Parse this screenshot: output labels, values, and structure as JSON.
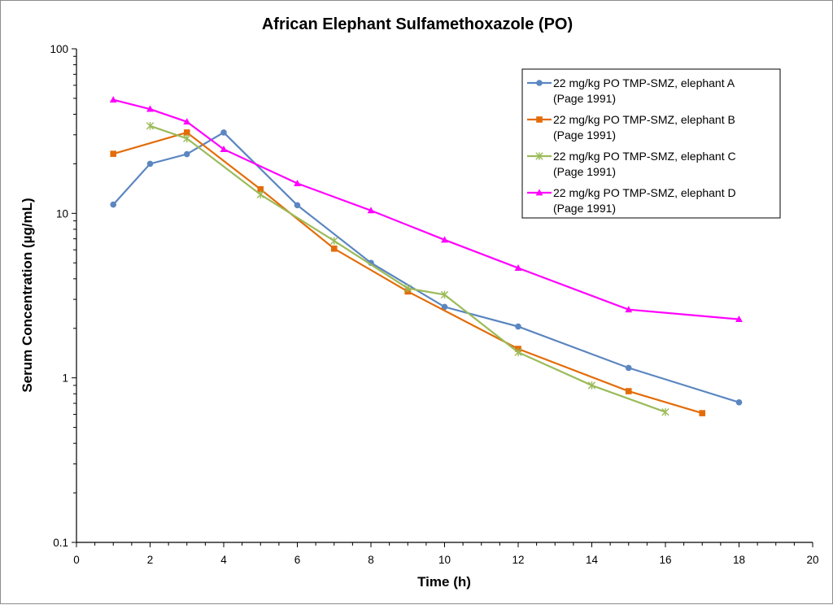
{
  "chart_data": {
    "type": "line",
    "title": "African Elephant Sulfamethoxazole (PO)",
    "xlabel": "Time (h)",
    "ylabel": "Serum Concentration (µg/mL)",
    "xlim": [
      0,
      20
    ],
    "ylim": [
      0.1,
      100
    ],
    "yscale": "log",
    "x_ticks": [
      "0",
      "2",
      "4",
      "6",
      "8",
      "10",
      "12",
      "14",
      "16",
      "18",
      "20"
    ],
    "y_ticks": [
      "0.1",
      "1",
      "10",
      "100"
    ],
    "grid": false,
    "legend_position": "top-right",
    "series": [
      {
        "name": "22 mg/kg PO TMP-SMZ, elephant A (Page 1991)",
        "legend_lines": [
          "22 mg/kg PO TMP-SMZ, elephant A",
          "(Page 1991)"
        ],
        "color": "#5b86c0",
        "marker": "circle",
        "x": [
          1,
          2,
          3,
          4,
          6,
          8,
          10,
          12,
          15,
          18
        ],
        "y": [
          11.3,
          20,
          22.9,
          31,
          11.2,
          5,
          2.7,
          2.05,
          1.15,
          0.71
        ]
      },
      {
        "name": "22 mg/kg PO TMP-SMZ, elephant B (Page 1991)",
        "legend_lines": [
          "22 mg/kg PO TMP-SMZ, elephant B",
          "(Page 1991)"
        ],
        "color": "#e36c09",
        "marker": "square",
        "x": [
          1,
          3,
          5,
          7,
          9,
          12,
          15,
          17
        ],
        "y": [
          23,
          31,
          14,
          6.1,
          3.35,
          1.5,
          0.83,
          0.61
        ]
      },
      {
        "name": "22 mg/kg PO TMP-SMZ, elephant C (Page 1991)",
        "legend_lines": [
          "22 mg/kg PO TMP-SMZ, elephant C",
          "(Page 1991)"
        ],
        "color": "#9bbb59",
        "marker": "star",
        "x": [
          2,
          3,
          5,
          7,
          9,
          10,
          12,
          14,
          16
        ],
        "y": [
          34,
          28.5,
          13,
          6.8,
          3.5,
          3.2,
          1.43,
          0.9,
          0.62
        ]
      },
      {
        "name": "22 mg/kg PO TMP-SMZ, elephant D (Page 1991)",
        "legend_lines": [
          "22 mg/kg PO TMP-SMZ, elephant D",
          "(Page 1991)"
        ],
        "color": "#ff00ff",
        "marker": "triangle",
        "x": [
          1,
          2,
          3,
          4,
          6,
          8,
          10,
          12,
          15,
          18
        ],
        "y": [
          49,
          43,
          36,
          24.5,
          15.2,
          10.4,
          6.9,
          4.65,
          2.6,
          2.27
        ]
      }
    ]
  }
}
